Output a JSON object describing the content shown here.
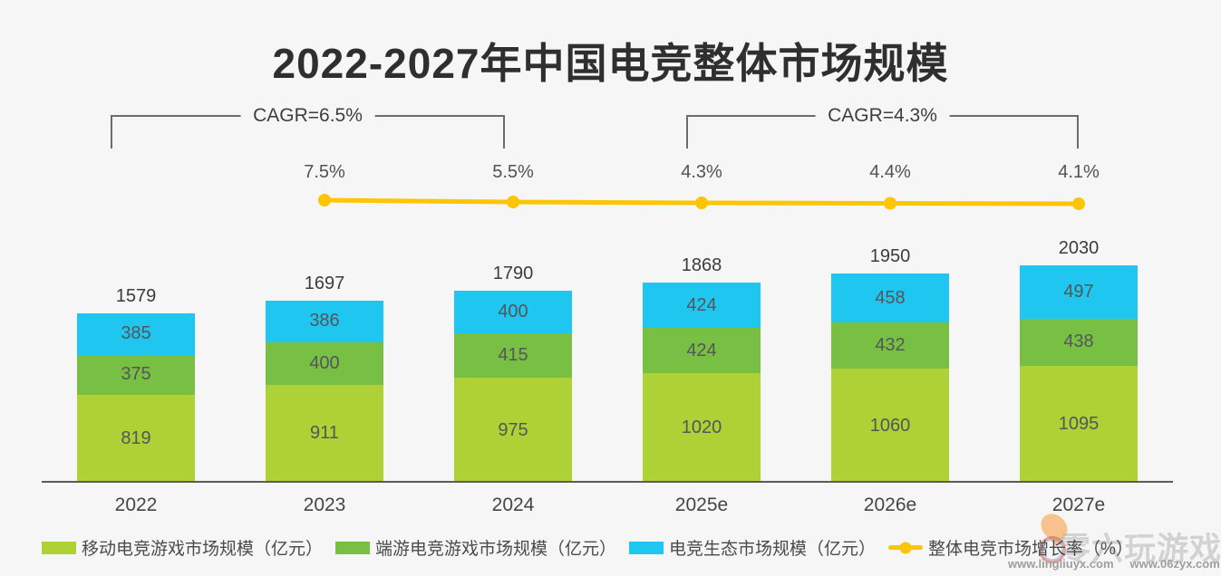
{
  "chart_data": {
    "type": "bar",
    "subtype": "stacked-bar-with-line",
    "title": "2022-2027年中国电竞整体市场规模",
    "categories": [
      "2022",
      "2023",
      "2024",
      "2025e",
      "2026e",
      "2027e"
    ],
    "series": [
      {
        "name": "移动电竞游戏市场规模（亿元）",
        "color": "#aed136",
        "values": [
          819,
          911,
          975,
          1020,
          1060,
          1095
        ]
      },
      {
        "name": "端游电竞游戏市场规模（亿元）",
        "color": "#77c043",
        "values": [
          375,
          400,
          415,
          424,
          432,
          438
        ]
      },
      {
        "name": "电竞生态市场规模（亿元）",
        "color": "#1fc6f0",
        "values": [
          385,
          386,
          400,
          424,
          458,
          497
        ]
      }
    ],
    "totals": [
      1579,
      1697,
      1790,
      1868,
      1950,
      2030
    ],
    "growth_line": {
      "name": "整体电竞市场增长率（%）",
      "color": "#fdc504",
      "x": [
        "2023",
        "2024",
        "2025e",
        "2026e",
        "2027e"
      ],
      "values": [
        7.5,
        5.5,
        4.3,
        4.4,
        4.1
      ],
      "labels": [
        "7.5%",
        "5.5%",
        "4.3%",
        "4.4%",
        "4.1%"
      ]
    },
    "cagr": [
      {
        "label": "CAGR=6.5%",
        "from": "2022",
        "to": "2024"
      },
      {
        "label": "CAGR=4.3%",
        "from": "2025e",
        "to": "2027e"
      }
    ],
    "ylim": [
      0,
      2100
    ],
    "grid": false,
    "legend_position": "bottom"
  },
  "legend": {
    "items": [
      {
        "label": "移动电竞游戏市场规模（亿元）",
        "marker": "swatch",
        "color": "#aed136"
      },
      {
        "label": "端游电竞游戏市场规模（亿元）",
        "marker": "swatch",
        "color": "#77c043"
      },
      {
        "label": "电竞生态市场规模（亿元）",
        "marker": "swatch",
        "color": "#1fc6f0"
      },
      {
        "label": "整体电竞市场增长率（%）",
        "marker": "line-dot",
        "color": "#fdc504"
      }
    ]
  },
  "watermark": {
    "brand": "零六玩游戏",
    "urls": [
      "www.lingliuyx.com",
      "www.06zyx.com"
    ]
  },
  "colors": {
    "background": "#f6f6f6",
    "axis": "#595a5c",
    "bracket": "#6b6b6b",
    "title_text": "#2f2f2f"
  }
}
